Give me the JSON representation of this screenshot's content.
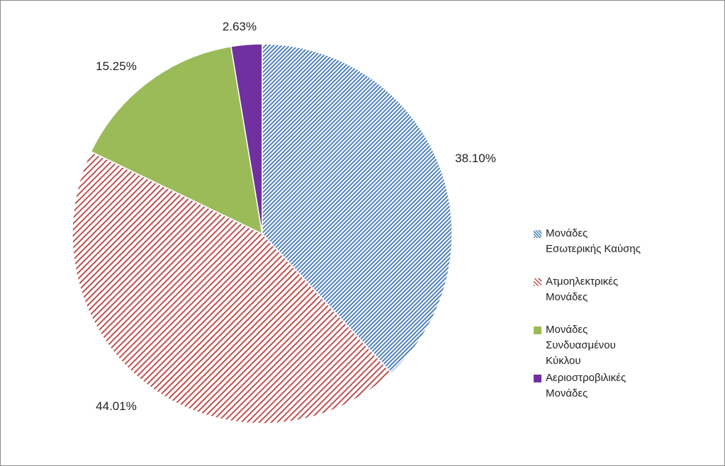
{
  "chart_data": {
    "type": "pie",
    "title": "",
    "categories": [
      "Μονάδες Εσωτερικής Καύσης",
      "Ατμοηλεκτρικές Μονάδες",
      "Μονάδες Συνδυασμένου Κύκλου",
      "Αεριοστροβιλικές Μονάδες"
    ],
    "legend_lines": [
      [
        "Μονάδες",
        "Εσωτερικής Καύσης"
      ],
      [
        "Ατμοηλεκτρικές",
        "Μονάδες"
      ],
      [
        "Μονάδες",
        "Συνδυασμένου",
        "Κύκλου"
      ],
      [
        "Αεριοστροβιλικές",
        "Μονάδες"
      ]
    ],
    "values": [
      38.1,
      44.01,
      15.25,
      2.63
    ],
    "labels": [
      "38.10%",
      "44.01%",
      "15.25%",
      "2.63%"
    ],
    "colors": [
      "#4f81bd",
      "#c0504d",
      "#9bbb59",
      "#7030a0"
    ],
    "fills": [
      "pattern-dark-diagonal-blue",
      "pattern-wide-diagonal-red",
      "solid-green",
      "solid-purple"
    ],
    "start_angle_deg": 0,
    "direction": "clockwise",
    "legend_position": "right"
  }
}
